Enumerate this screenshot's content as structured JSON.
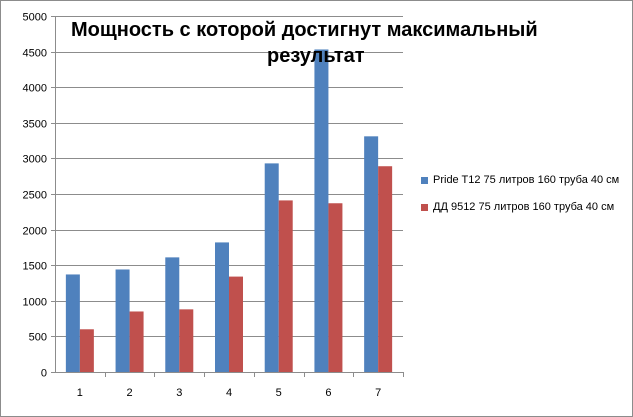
{
  "chart_data": {
    "type": "bar",
    "title_line1": "Мощность с которой достигнут максимальный",
    "title_line2": "результат",
    "categories": [
      "1",
      "2",
      "3",
      "4",
      "5",
      "6",
      "7"
    ],
    "series": [
      {
        "name": "Pride T12 75 литров 160 труба 40 см",
        "color": "#4f81bd",
        "values": [
          1370,
          1440,
          1610,
          1820,
          2930,
          4530,
          3310
        ]
      },
      {
        "name": "ДД 9512 75 литров 160 труба 40 см",
        "color": "#c0504d",
        "values": [
          600,
          850,
          880,
          1340,
          2410,
          2370,
          2890
        ]
      }
    ],
    "ylim": [
      0,
      5000
    ],
    "yticks": [
      "0",
      "500",
      "1000",
      "1500",
      "2000",
      "2500",
      "3000",
      "3500",
      "4000",
      "4500",
      "5000"
    ],
    "grid": true,
    "legend_position": "right"
  }
}
